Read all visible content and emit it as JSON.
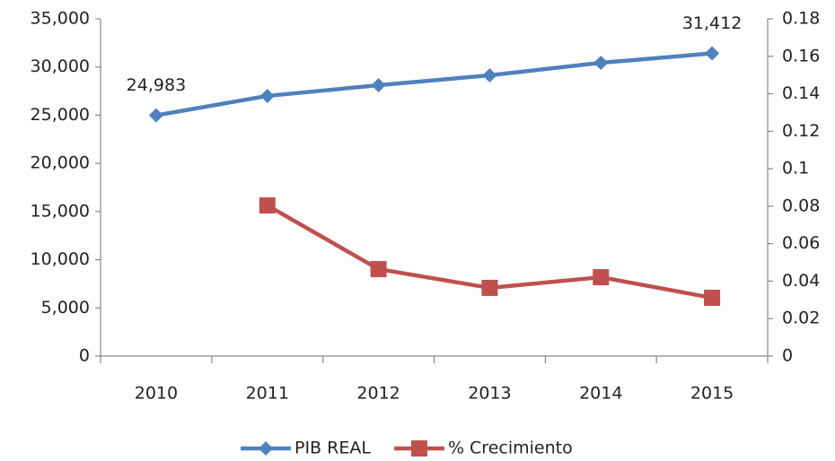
{
  "chart_data": {
    "type": "line",
    "categories": [
      "2010",
      "2011",
      "2012",
      "2013",
      "2014",
      "2015"
    ],
    "series": [
      {
        "name": "PIB REAL",
        "color": "#4f81bd",
        "marker": "diamond",
        "axis": "y",
        "values": [
          24983,
          27000,
          28110,
          29140,
          30440,
          31412
        ],
        "value_labels": [
          "24,983",
          null,
          null,
          null,
          null,
          "31,412"
        ]
      },
      {
        "name": "% Crecimiento",
        "color": "#c0504d",
        "marker": "square",
        "axis": "y2",
        "values": [
          null,
          0.0804,
          0.0464,
          0.0364,
          0.0421,
          0.0311
        ]
      }
    ],
    "ylim": [
      0,
      35000
    ],
    "yticks": [
      0,
      {
        "value": 5000,
        "label": "5,000"
      },
      {
        "value": 10000,
        "label": "10,000"
      },
      {
        "value": 15000,
        "label": "15,000"
      },
      {
        "value": 20000,
        "label": "20,000"
      },
      {
        "value": 25000,
        "label": "25,000"
      },
      {
        "value": 30000,
        "label": "30,000"
      },
      {
        "value": 35000,
        "label": "35,000"
      }
    ],
    "y2lim": [
      0,
      0.18
    ],
    "y2ticks": [
      0,
      0.02,
      0.04,
      0.06,
      0.08,
      0.1,
      0.12,
      0.14,
      0.16,
      0.18
    ],
    "grid": false,
    "legend": "bottom"
  }
}
